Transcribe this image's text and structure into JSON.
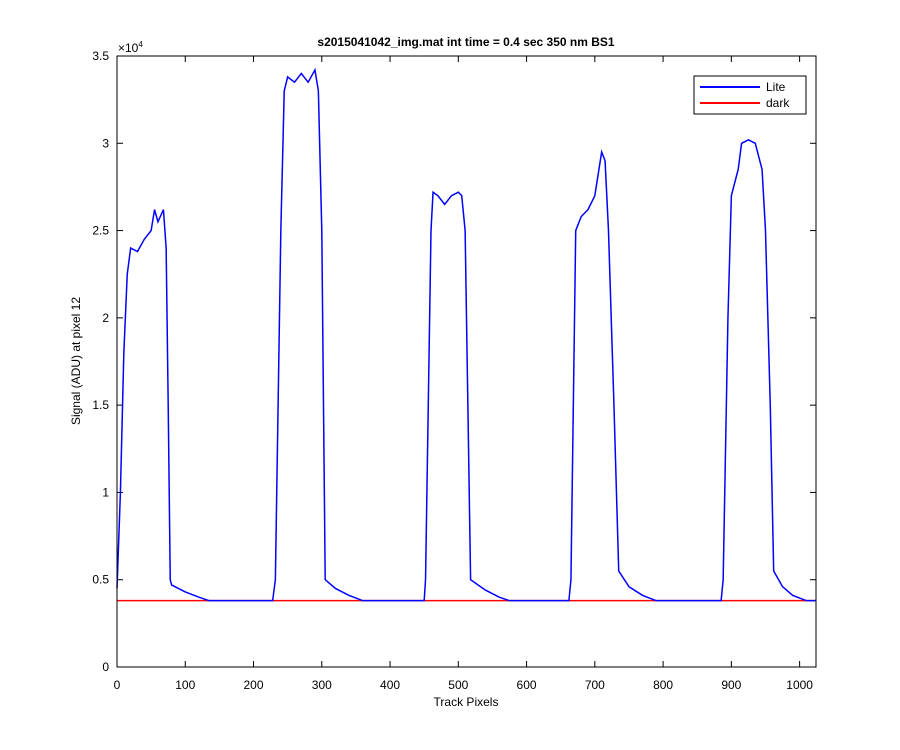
{
  "chart_data": {
    "type": "line",
    "title": "s2015041042_img.mat int time = 0.4 sec  350 nm BS1",
    "x_label": "Track Pixels",
    "y_label": "Signal (ADU) at pixel 12",
    "y_multiplier": "×10",
    "y_multiplier_exp": "4",
    "xlim": [
      0,
      1024
    ],
    "ylim": [
      0,
      3.5
    ],
    "xticks": [
      0,
      100,
      200,
      300,
      400,
      500,
      600,
      700,
      800,
      900,
      1000
    ],
    "yticks": [
      0,
      0.5,
      1,
      1.5,
      2,
      2.5,
      3,
      3.5
    ],
    "legend": "upper right",
    "grid": false,
    "series": [
      {
        "name": "Lite",
        "color": "#0000ff",
        "x": [
          0,
          5,
          10,
          15,
          20,
          30,
          40,
          50,
          55,
          60,
          68,
          72,
          75,
          78,
          80,
          100,
          120,
          135,
          228,
          232,
          240,
          245,
          250,
          260,
          270,
          280,
          290,
          295,
          300,
          305,
          320,
          340,
          360,
          450,
          452,
          460,
          463,
          470,
          480,
          490,
          500,
          505,
          510,
          518,
          540,
          560,
          575,
          662,
          665,
          672,
          680,
          690,
          700,
          710,
          715,
          720,
          728,
          735,
          750,
          770,
          790,
          885,
          888,
          895,
          900,
          910,
          915,
          925,
          935,
          945,
          950,
          957,
          962,
          975,
          990,
          1010,
          1024
        ],
        "values": [
          0.45,
          1.0,
          1.8,
          2.25,
          2.4,
          2.38,
          2.45,
          2.5,
          2.62,
          2.55,
          2.62,
          2.4,
          1.5,
          0.5,
          0.47,
          0.43,
          0.4,
          0.38,
          0.38,
          0.5,
          2.5,
          3.3,
          3.38,
          3.35,
          3.4,
          3.35,
          3.42,
          3.3,
          2.5,
          0.5,
          0.45,
          0.41,
          0.38,
          0.38,
          0.5,
          2.5,
          2.72,
          2.7,
          2.65,
          2.7,
          2.72,
          2.7,
          2.5,
          0.5,
          0.44,
          0.4,
          0.38,
          0.38,
          0.5,
          2.5,
          2.58,
          2.62,
          2.7,
          2.95,
          2.9,
          2.5,
          1.5,
          0.55,
          0.46,
          0.41,
          0.38,
          0.38,
          0.5,
          2.0,
          2.7,
          2.85,
          3.0,
          3.02,
          3.0,
          2.85,
          2.5,
          1.5,
          0.55,
          0.46,
          0.41,
          0.38,
          0.38
        ]
      },
      {
        "name": "dark",
        "color": "#ff0000",
        "x": [
          0,
          1024
        ],
        "values": [
          0.38,
          0.38
        ]
      }
    ]
  }
}
